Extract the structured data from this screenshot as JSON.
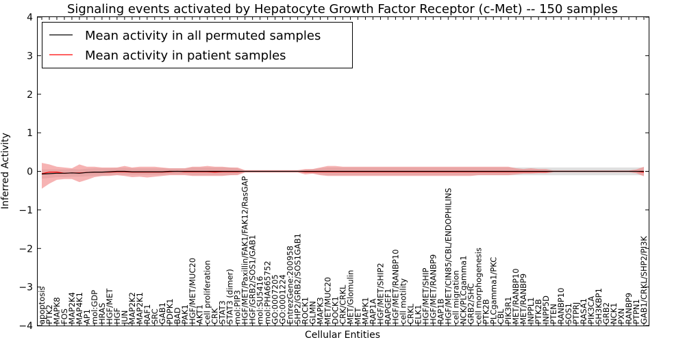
{
  "chart_data": {
    "type": "line",
    "title": "Signaling events activated by Hepatocyte Growth Factor Receptor (c-Met) -- 150 samples",
    "xlabel": "Cellular Entities",
    "ylabel": "Inferred Activity",
    "ylim": [
      -4,
      4
    ],
    "yticks": [
      -4,
      -3,
      -2,
      -1,
      0,
      1,
      2,
      3,
      4
    ],
    "ytick_labels": [
      "−4",
      "−3",
      "−2",
      "−1",
      "0",
      "1",
      "2",
      "3",
      "4"
    ],
    "grid": false,
    "legend_position": "top-left",
    "categories": [
      "apoptosis",
      "PTK2",
      "MAPK8",
      "FOS",
      "MAP2K4",
      "MAP4K1",
      "AP1",
      "mol:GDP",
      "HRAS",
      "HGF/MET",
      "HGF",
      "JUN",
      "MAP2K2",
      "MAP2K1",
      "RAF1",
      "SRC",
      "GAB1",
      "PDPK1",
      "BAD",
      "PAK1",
      "HGF/MET/MUC20",
      "AKT1",
      "cell proliferation",
      "CRK",
      "STAT3",
      "STAT3 (dimer)",
      "mol:PIP3",
      "HGF/MET/Paxillin/FAK1/FAK12/RasGAP",
      "HGF/GRB2/SOS1/GAB1",
      "mol:SU5416",
      "mol:PHA665752",
      "GO:0007205",
      "GO:0001224",
      "EntrezGene:200958",
      "SHP2/GRB2/SOS1GAB1",
      "ROCK1",
      "GLMN",
      "MAPK3",
      "MET/MUC20",
      "DOCK1",
      "CRK/CRKL",
      "MET/Glomulin",
      "MET",
      "MAPK1",
      "RAP1A",
      "HGF/MET/SHIP2",
      "RAPGEF1",
      "HGF/MET/RANBP10",
      "cell motility",
      "CRKL",
      "ELK1",
      "HGF/MET/SHIP",
      "HGF/MET/RANBP9",
      "RAP1B",
      "HGF/MET/CIN85/CBL/ENDOPHILINS",
      "cell migration",
      "NCK/PLCgamma1",
      "GRB2/SHC",
      "cell morphogenesis",
      "PTK2B",
      "PLCgamma1/PKC",
      "CBL",
      "PIK3R1",
      "MET/RANBP10",
      "MET/RANBP9",
      "INPPL1",
      "PTK2B",
      "INPP5D",
      "PTEN",
      "RANBP10",
      "SOS1",
      "PTPRJ",
      "RASA1",
      "PIK3CA",
      "SH3KBP1",
      "GRB2",
      "NCK1",
      "PXN",
      "RANBP9",
      "PTPN1",
      "GAB1/CRKL/SHP2/PI3K"
    ],
    "series": [
      {
        "name": "Mean activity in all permuted samples",
        "color": "#000000",
        "values": [
          -0.07,
          -0.06,
          -0.05,
          -0.05,
          -0.04,
          -0.05,
          -0.03,
          -0.02,
          -0.02,
          -0.01,
          0.0,
          0.0,
          -0.01,
          -0.01,
          -0.01,
          -0.01,
          -0.01,
          0.0,
          0.0,
          0.0,
          0.0,
          0.0,
          0.0,
          0.0,
          0.0,
          0.0,
          0.0,
          0.0,
          0.0,
          0.0,
          0.0,
          0.0,
          0.0,
          0.0,
          0.0,
          0.0,
          0.0,
          0.0,
          0.0,
          0.0,
          0.0,
          0.0,
          0.0,
          0.0,
          0.0,
          0.0,
          0.0,
          0.0,
          0.0,
          0.0,
          0.0,
          0.0,
          0.0,
          0.0,
          0.0,
          0.0,
          0.0,
          0.0,
          0.0,
          0.0,
          0.0,
          0.0,
          0.0,
          0.0,
          0.0,
          0.0,
          0.0,
          0.0,
          0.0,
          0.0,
          0.0,
          0.0,
          0.0,
          0.0,
          0.0,
          0.0,
          0.0,
          0.0,
          0.0,
          0.0,
          0.0
        ],
        "lower": [
          -0.19,
          -0.17,
          -0.15,
          -0.15,
          -0.14,
          -0.14,
          -0.13,
          -0.12,
          -0.12,
          -0.1,
          -0.09,
          -0.09,
          -0.09,
          -0.09,
          -0.09,
          -0.09,
          -0.09,
          -0.08,
          -0.08,
          -0.08,
          -0.1,
          -0.1,
          -0.1,
          -0.1,
          -0.1,
          -0.1,
          -0.08,
          -0.01,
          -0.01,
          -0.01,
          -0.01,
          -0.01,
          -0.01,
          -0.01,
          -0.01,
          -0.04,
          -0.06,
          -0.08,
          -0.1,
          -0.1,
          -0.1,
          -0.1,
          -0.1,
          -0.1,
          -0.1,
          -0.1,
          -0.1,
          -0.1,
          -0.1,
          -0.1,
          -0.1,
          -0.1,
          -0.1,
          -0.1,
          -0.1,
          -0.1,
          -0.1,
          -0.1,
          -0.1,
          -0.1,
          -0.1,
          -0.1,
          -0.1,
          -0.1,
          -0.1,
          -0.1,
          -0.1,
          -0.1,
          -0.1,
          -0.1,
          -0.1,
          -0.1,
          -0.1,
          -0.1,
          -0.1,
          -0.1,
          -0.1,
          -0.1,
          -0.1,
          -0.1,
          -0.1
        ],
        "upper": [
          0.05,
          0.05,
          0.05,
          0.05,
          0.06,
          0.05,
          0.07,
          0.08,
          0.08,
          0.08,
          0.09,
          0.09,
          0.08,
          0.08,
          0.08,
          0.08,
          0.08,
          0.08,
          0.08,
          0.08,
          0.1,
          0.1,
          0.1,
          0.1,
          0.1,
          0.1,
          0.08,
          0.01,
          0.01,
          0.01,
          0.01,
          0.01,
          0.01,
          0.01,
          0.01,
          0.04,
          0.06,
          0.08,
          0.1,
          0.1,
          0.1,
          0.1,
          0.1,
          0.1,
          0.1,
          0.1,
          0.1,
          0.1,
          0.1,
          0.1,
          0.1,
          0.1,
          0.1,
          0.1,
          0.1,
          0.1,
          0.1,
          0.1,
          0.1,
          0.1,
          0.1,
          0.1,
          0.1,
          0.1,
          0.1,
          0.1,
          0.1,
          0.1,
          0.1,
          0.1,
          0.1,
          0.1,
          0.1,
          0.1,
          0.1,
          0.1,
          0.1,
          0.1,
          0.1,
          0.1,
          0.1
        ]
      },
      {
        "name": "Mean activity in patient samples",
        "color": "#ff0000",
        "band_color": "#f08080",
        "values": [
          -0.06,
          -0.02,
          -0.02,
          -0.05,
          -0.04,
          -0.04,
          -0.03,
          -0.02,
          -0.02,
          -0.02,
          -0.01,
          -0.01,
          -0.02,
          -0.02,
          -0.02,
          -0.02,
          -0.02,
          -0.01,
          0.0,
          -0.01,
          -0.01,
          -0.01,
          -0.01,
          -0.02,
          -0.01,
          -0.01,
          -0.01,
          0.0,
          0.0,
          0.0,
          0.0,
          0.0,
          0.0,
          0.0,
          0.0,
          -0.01,
          -0.01,
          -0.01,
          -0.01,
          -0.01,
          -0.01,
          -0.01,
          -0.01,
          -0.01,
          -0.01,
          -0.01,
          -0.01,
          -0.01,
          -0.01,
          -0.01,
          -0.01,
          -0.01,
          -0.01,
          -0.01,
          -0.01,
          -0.01,
          -0.01,
          -0.01,
          -0.01,
          -0.01,
          -0.01,
          -0.01,
          -0.01,
          -0.01,
          -0.01,
          -0.01,
          -0.01,
          -0.01,
          0.0,
          0.0,
          0.0,
          0.0,
          0.0,
          0.0,
          0.0,
          0.0,
          0.0,
          0.0,
          0.0,
          0.0,
          -0.02
        ],
        "lower": [
          -0.45,
          -0.32,
          -0.22,
          -0.2,
          -0.2,
          -0.28,
          -0.22,
          -0.15,
          -0.12,
          -0.12,
          -0.1,
          -0.12,
          -0.15,
          -0.14,
          -0.16,
          -0.14,
          -0.12,
          -0.1,
          -0.1,
          -0.1,
          -0.12,
          -0.12,
          -0.12,
          -0.12,
          -0.12,
          -0.1,
          -0.1,
          -0.03,
          -0.03,
          -0.03,
          -0.03,
          -0.03,
          -0.03,
          -0.03,
          -0.03,
          -0.08,
          -0.06,
          -0.1,
          -0.12,
          -0.12,
          -0.12,
          -0.12,
          -0.12,
          -0.12,
          -0.12,
          -0.12,
          -0.12,
          -0.12,
          -0.12,
          -0.12,
          -0.12,
          -0.12,
          -0.12,
          -0.12,
          -0.12,
          -0.12,
          -0.12,
          -0.12,
          -0.1,
          -0.1,
          -0.1,
          -0.1,
          -0.1,
          -0.08,
          -0.06,
          -0.06,
          -0.05,
          -0.05,
          -0.02,
          -0.02,
          -0.02,
          -0.02,
          -0.02,
          -0.02,
          -0.02,
          -0.02,
          -0.02,
          -0.02,
          -0.02,
          -0.05,
          -0.13
        ],
        "upper": [
          0.22,
          0.18,
          0.12,
          0.1,
          0.08,
          0.18,
          0.12,
          0.12,
          0.1,
          0.1,
          0.1,
          0.14,
          0.1,
          0.12,
          0.12,
          0.12,
          0.1,
          0.08,
          0.08,
          0.08,
          0.12,
          0.12,
          0.14,
          0.12,
          0.12,
          0.1,
          0.1,
          0.03,
          0.03,
          0.03,
          0.03,
          0.03,
          0.03,
          0.03,
          0.03,
          0.06,
          0.06,
          0.1,
          0.14,
          0.14,
          0.12,
          0.12,
          0.12,
          0.12,
          0.12,
          0.12,
          0.12,
          0.12,
          0.12,
          0.12,
          0.12,
          0.12,
          0.12,
          0.12,
          0.12,
          0.12,
          0.12,
          0.12,
          0.12,
          0.12,
          0.12,
          0.12,
          0.12,
          0.08,
          0.06,
          0.08,
          0.06,
          0.06,
          0.02,
          0.02,
          0.02,
          0.02,
          0.02,
          0.02,
          0.02,
          0.02,
          0.02,
          0.02,
          0.02,
          0.05,
          0.12
        ]
      }
    ]
  }
}
